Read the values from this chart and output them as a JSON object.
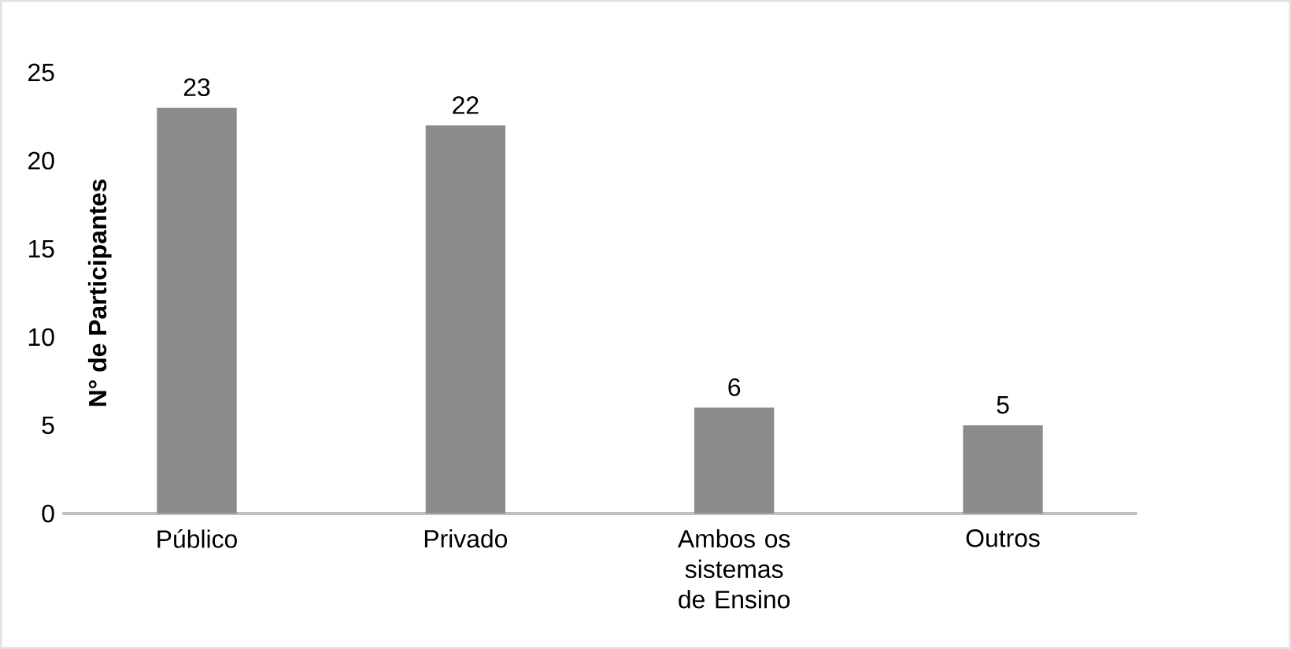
{
  "chart_data": {
    "type": "bar",
    "ylabel": "N° de Participantes",
    "categories": [
      "Público",
      "Privado",
      "Ambos os sistemas de Ensino",
      "Outros"
    ],
    "values": [
      23,
      22,
      6,
      5
    ],
    "color": "#8c8c8c",
    "ylim": [
      0,
      25
    ],
    "yticks": [
      0,
      5,
      10,
      15,
      20,
      25
    ],
    "data_labels": true,
    "grid": false
  }
}
